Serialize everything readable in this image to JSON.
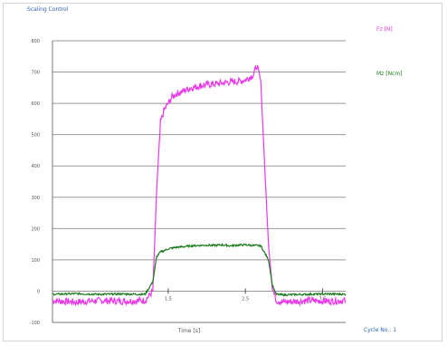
{
  "chart_data": {
    "type": "line",
    "title": "Scaling Control",
    "xlabel": "Time [s]",
    "ylabel": "",
    "ylim": [
      -100,
      800
    ],
    "yticks": [
      -100,
      0,
      100,
      200,
      300,
      400,
      500,
      600,
      700,
      800
    ],
    "xlim": [
      0,
      3.8
    ],
    "xticks": [
      1.5,
      2.5,
      3.5
    ],
    "xtick_labels": [
      "1.5",
      "2.5",
      "3.5"
    ],
    "grid": true,
    "footer": "Cycle No.: 1",
    "legend_position": "right",
    "series": [
      {
        "name": "Fz [N]",
        "color": "#e838e8",
        "x": [
          0,
          0.3,
          0.6,
          0.9,
          1.2,
          1.3,
          1.35,
          1.4,
          1.45,
          1.5,
          1.55,
          1.6,
          1.7,
          1.8,
          1.9,
          2.0,
          2.1,
          2.2,
          2.3,
          2.4,
          2.5,
          2.6,
          2.65,
          2.7,
          2.75,
          2.8,
          2.85,
          2.9,
          3.0,
          3.3,
          3.6,
          3.8
        ],
        "y": [
          -30,
          -35,
          -30,
          -32,
          -30,
          0,
          320,
          540,
          580,
          600,
          620,
          630,
          640,
          650,
          655,
          660,
          662,
          665,
          668,
          670,
          675,
          690,
          720,
          670,
          400,
          150,
          10,
          -30,
          -35,
          -30,
          -32,
          -30
        ]
      },
      {
        "name": "Mz [Ncm]",
        "color": "#1b7a1b",
        "x": [
          0,
          0.3,
          0.6,
          0.9,
          1.2,
          1.3,
          1.35,
          1.4,
          1.5,
          1.6,
          1.7,
          1.8,
          1.9,
          2.0,
          2.1,
          2.2,
          2.3,
          2.4,
          2.5,
          2.6,
          2.7,
          2.8,
          2.85,
          2.9,
          3.0,
          3.3,
          3.6,
          3.8
        ],
        "y": [
          -10,
          -8,
          -10,
          -9,
          -10,
          30,
          110,
          125,
          135,
          140,
          142,
          145,
          146,
          147,
          146,
          148,
          145,
          147,
          148,
          146,
          145,
          100,
          20,
          -10,
          -12,
          -10,
          -9,
          -10
        ]
      }
    ]
  }
}
